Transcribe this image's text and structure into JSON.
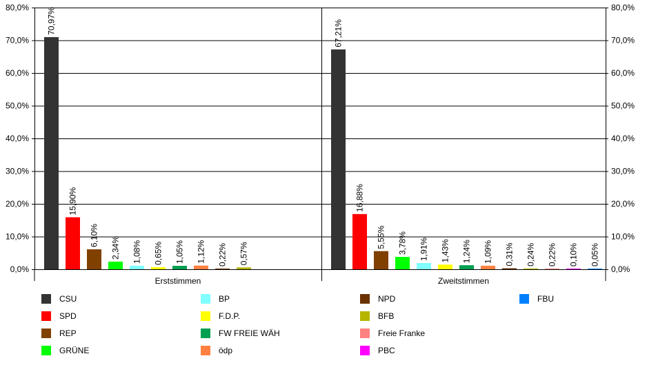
{
  "chart_data": {
    "type": "bar",
    "ylim": [
      0,
      80
    ],
    "yticks": [
      0,
      10,
      20,
      30,
      40,
      50,
      60,
      70,
      80
    ],
    "ytick_labels": [
      "0,0%",
      "10,0%",
      "20,0%",
      "30,0%",
      "40,0%",
      "50,0%",
      "60,0%",
      "70,0%",
      "80,0%"
    ],
    "grid": true,
    "legend_position": "bottom",
    "series": [
      {
        "name": "CSU",
        "color": "#333333"
      },
      {
        "name": "SPD",
        "color": "#ff0000"
      },
      {
        "name": "REP",
        "color": "#804000"
      },
      {
        "name": "GRÜNE",
        "color": "#00ff00"
      },
      {
        "name": "BP",
        "color": "#80ffff"
      },
      {
        "name": "F.D.P.",
        "color": "#ffff00"
      },
      {
        "name": "FW FREIE WÄH",
        "color": "#00a050"
      },
      {
        "name": "ödp",
        "color": "#ff8040"
      },
      {
        "name": "NPD",
        "color": "#6b3200"
      },
      {
        "name": "BFB",
        "color": "#b5b500"
      },
      {
        "name": "Freie Franke",
        "color": "#ff8080"
      },
      {
        "name": "PBC",
        "color": "#ff00ff"
      },
      {
        "name": "FBU",
        "color": "#0080ff"
      }
    ],
    "groups": [
      {
        "category": "Erststimmen",
        "bars": [
          {
            "party": "CSU",
            "value": 70.97,
            "label": "70,97%"
          },
          {
            "party": "SPD",
            "value": 15.9,
            "label": "15,90%"
          },
          {
            "party": "REP",
            "value": 6.1,
            "label": "6,10%"
          },
          {
            "party": "GRÜNE",
            "value": 2.34,
            "label": "2,34%"
          },
          {
            "party": "BP",
            "value": 1.08,
            "label": "1,08%"
          },
          {
            "party": "F.D.P.",
            "value": 0.65,
            "label": "0,65%"
          },
          {
            "party": "FW FREIE WÄH",
            "value": 1.05,
            "label": "1,05%"
          },
          {
            "party": "ödp",
            "value": 1.12,
            "label": "1,12%"
          },
          {
            "party": "NPD",
            "value": 0.22,
            "label": "0,22%"
          },
          {
            "party": "BFB",
            "value": 0.57,
            "label": "0,57%"
          }
        ]
      },
      {
        "category": "Zweitstimmen",
        "bars": [
          {
            "party": "CSU",
            "value": 67.21,
            "label": "67,21%"
          },
          {
            "party": "SPD",
            "value": 16.88,
            "label": "16,88%"
          },
          {
            "party": "REP",
            "value": 5.55,
            "label": "5,55%"
          },
          {
            "party": "GRÜNE",
            "value": 3.78,
            "label": "3,78%"
          },
          {
            "party": "BP",
            "value": 1.91,
            "label": "1,91%"
          },
          {
            "party": "F.D.P.",
            "value": 1.43,
            "label": "1,43%"
          },
          {
            "party": "FW FREIE WÄH",
            "value": 1.24,
            "label": "1,24%"
          },
          {
            "party": "ödp",
            "value": 1.09,
            "label": "1,09%"
          },
          {
            "party": "NPD",
            "value": 0.31,
            "label": "0,31%"
          },
          {
            "party": "BFB",
            "value": 0.24,
            "label": "0,24%"
          },
          {
            "party": "Freie Franke",
            "value": 0.22,
            "label": "0,22%"
          },
          {
            "party": "PBC",
            "value": 0.1,
            "label": "0,10%"
          },
          {
            "party": "FBU",
            "value": 0.05,
            "label": "0,05%"
          }
        ]
      }
    ]
  }
}
